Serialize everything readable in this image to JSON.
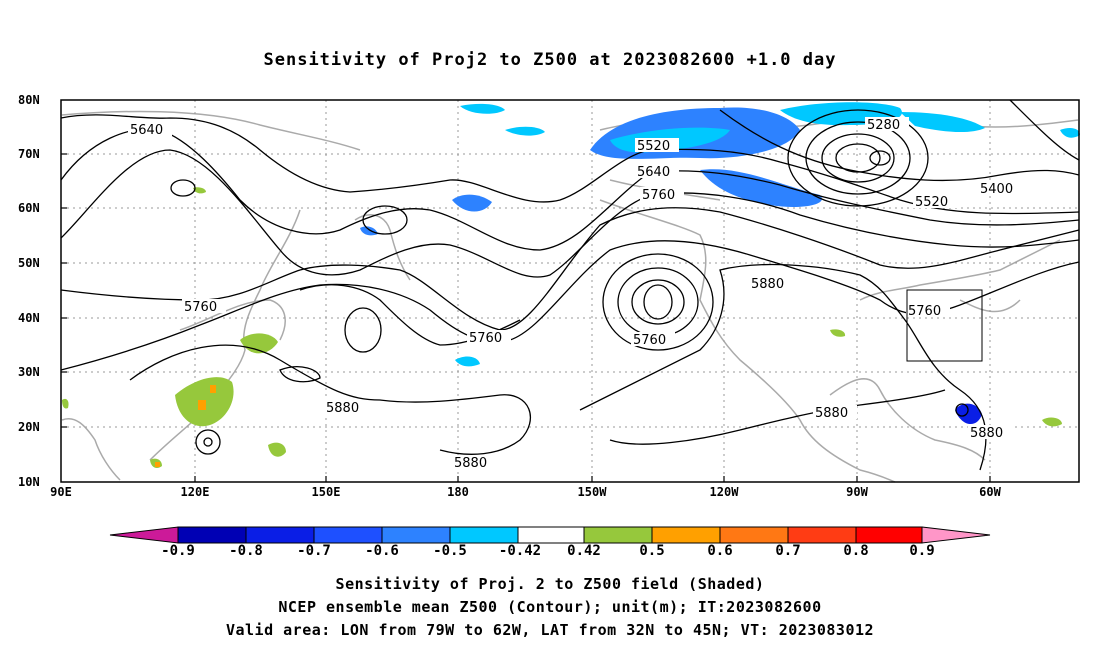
{
  "title": "Sensitivity of Proj2 to Z500 at 2023082600 +1.0 day",
  "lat_labels": [
    "80N",
    "70N",
    "60N",
    "50N",
    "40N",
    "30N",
    "20N",
    "10N"
  ],
  "lon_labels": [
    "90E",
    "120E",
    "150E",
    "180",
    "150W",
    "120W",
    "90W",
    "60W"
  ],
  "contour_labels": [
    "5640",
    "5520",
    "5640",
    "5760",
    "5280",
    "5400",
    "5520",
    "5760",
    "5880",
    "5760",
    "5760",
    "5880",
    "5880",
    "5760",
    "5880",
    "5880"
  ],
  "colorbar_labels": [
    "-0.9",
    "-0.8",
    "-0.7",
    "-0.6",
    "-0.5",
    "-0.42",
    "0.42",
    "0.5",
    "0.6",
    "0.7",
    "0.8",
    "0.9"
  ],
  "colorbar_colors": [
    "#cc1a99",
    "#0000b4",
    "#0a1ee6",
    "#1e50ff",
    "#2d82ff",
    "#00c8ff",
    "#ffffff",
    "#96c83c",
    "#ffa000",
    "#ff7814",
    "#ff3c14",
    "#ff0000",
    "#ff96c8"
  ],
  "footer": {
    "line1": "Sensitivity of Proj. 2 to Z500 field (Shaded)",
    "line2": "NCEP ensemble mean Z500 (Contour); unit(m); IT:2023082600",
    "line3": "Valid area: LON from 79W to 62W, LAT from 32N to 45N; VT: 2023083012"
  }
}
